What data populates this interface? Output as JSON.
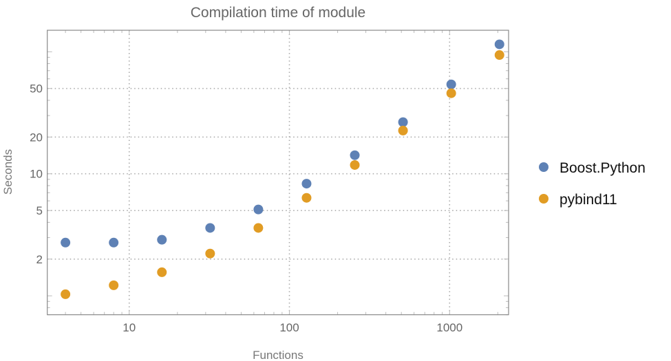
{
  "chart_data": {
    "type": "scatter",
    "title": "Compilation time of module",
    "xlabel": "Functions",
    "ylabel": "Seconds",
    "xscale": "log",
    "yscale": "log",
    "xlim": [
      3.08,
      2335
    ],
    "ylim": [
      0.7,
      150
    ],
    "grid": true,
    "legend_position": "right",
    "x_ticks": [
      {
        "value": 10,
        "label": "10"
      },
      {
        "value": 100,
        "label": "100"
      },
      {
        "value": 1000,
        "label": "1000"
      }
    ],
    "y_ticks": [
      {
        "value": 2,
        "label": "2"
      },
      {
        "value": 5,
        "label": "5"
      },
      {
        "value": 10,
        "label": "10"
      },
      {
        "value": 20,
        "label": "20"
      },
      {
        "value": 50,
        "label": "50"
      }
    ],
    "x": [
      4,
      8,
      16,
      32,
      64,
      128,
      256,
      512,
      1024,
      2048
    ],
    "series": [
      {
        "name": "Boost.Python",
        "color": "#5e81b5",
        "values": [
          2.73,
          2.73,
          2.88,
          3.6,
          5.1,
          8.3,
          14.2,
          26.5,
          54,
          115
        ]
      },
      {
        "name": "pybind11",
        "color": "#e19c24",
        "values": [
          1.03,
          1.22,
          1.56,
          2.22,
          3.6,
          6.35,
          11.8,
          22.6,
          45.7,
          94
        ]
      }
    ]
  }
}
